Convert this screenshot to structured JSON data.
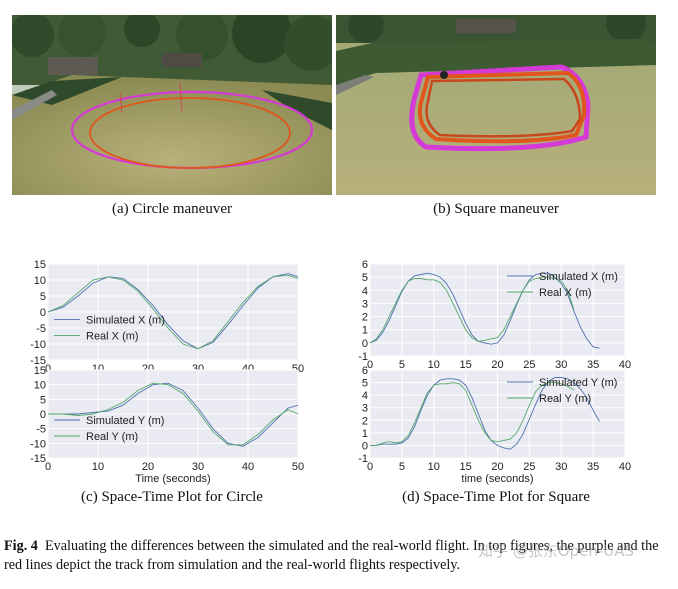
{
  "figure": {
    "subcaptions": {
      "a": "(a)  Circle maneuver",
      "b": "(b)  Square maneuver",
      "c": "(c)  Space-Time Plot for Circle",
      "d": "(d)  Space-Time Plot for Square"
    },
    "caption_label": "Fig. 4",
    "caption_text": "Evaluating the differences between the simulated and the real-world flight. In top figures, the purple and the red lines depict the track from simulation and the real-world flights respectively.",
    "watermark": "知乎 @张东Open-UAS"
  },
  "colors": {
    "simulated": "#4c72b0",
    "real": "#55a868",
    "plot_bg": "#eaeaf2",
    "sim_track": "#d63ad6",
    "real_track": "#e0561c"
  },
  "chart_data": [
    {
      "id": "circle-x",
      "type": "line",
      "xlim": [
        0,
        50
      ],
      "ylim": [
        -15,
        15
      ],
      "xticks": [
        0,
        10,
        20,
        30,
        40,
        50
      ],
      "yticks": [
        15,
        10,
        5,
        0,
        -5,
        -10,
        -15
      ],
      "xlabel": "",
      "legend_position": "left-middle",
      "grid": true,
      "series": [
        {
          "name": "Simulated X (m)",
          "x": [
            0,
            3,
            6,
            9,
            12,
            15,
            18,
            21,
            24,
            27,
            30,
            33,
            36,
            39,
            42,
            45,
            48,
            50
          ],
          "y": [
            0,
            1.5,
            5,
            9,
            11,
            10.5,
            7,
            2,
            -4,
            -9,
            -11.5,
            -9.5,
            -4,
            2,
            7.5,
            11,
            12,
            11
          ]
        },
        {
          "name": "Real X (m)",
          "x": [
            0,
            3,
            6,
            9,
            12,
            15,
            18,
            21,
            24,
            27,
            30,
            33,
            36,
            39,
            42,
            45,
            48,
            50
          ],
          "y": [
            0,
            2,
            6,
            10,
            11,
            10,
            6.5,
            1,
            -5,
            -10,
            -11.5,
            -9,
            -3,
            3,
            8,
            11,
            11.5,
            10.5
          ]
        }
      ]
    },
    {
      "id": "square-x",
      "type": "line",
      "xlim": [
        0,
        40
      ],
      "ylim": [
        -1,
        6
      ],
      "xticks": [
        0,
        5,
        10,
        15,
        20,
        25,
        30,
        35,
        40
      ],
      "yticks": [
        6,
        5,
        4,
        3,
        2,
        1,
        0,
        -1
      ],
      "xlabel": "",
      "legend_position": "top-right",
      "grid": true,
      "series": [
        {
          "name": "Simulated X (m)",
          "x": [
            0,
            1,
            2,
            3,
            4,
            5,
            6,
            7,
            8,
            9,
            10,
            11,
            12,
            13,
            14,
            15,
            16,
            17,
            18,
            19,
            20,
            21,
            22,
            23,
            24,
            25,
            26,
            27,
            28,
            29,
            30,
            31,
            32,
            33,
            34,
            35,
            36
          ],
          "y": [
            0,
            0.2,
            0.8,
            1.7,
            2.8,
            3.9,
            4.7,
            5.1,
            5.2,
            5.3,
            5.2,
            5,
            4.5,
            3.7,
            2.6,
            1.5,
            0.6,
            0.1,
            0,
            -0.1,
            0,
            0.6,
            1.7,
            2.9,
            4,
            4.8,
            5.2,
            5.3,
            5.3,
            5,
            4.5,
            3.7,
            2.4,
            1.2,
            0.3,
            -0.3,
            -0.4
          ]
        },
        {
          "name": "Real X (m)",
          "x": [
            0,
            1,
            2,
            3,
            4,
            5,
            6,
            7,
            8,
            9,
            10,
            11,
            12,
            13,
            14,
            15,
            16,
            17,
            18,
            19,
            20,
            21,
            22,
            23,
            24,
            25,
            26,
            27,
            28,
            29,
            30,
            31,
            32
          ],
          "y": [
            0,
            0.3,
            1,
            2,
            3,
            4,
            4.7,
            4.9,
            4.9,
            4.8,
            4.8,
            4.6,
            4,
            3,
            2,
            1,
            0.4,
            0.1,
            0.2,
            0.3,
            0.4,
            1,
            2,
            3,
            4,
            4.7,
            4.9,
            5,
            5,
            4.9,
            4.7,
            4,
            2.5
          ]
        }
      ]
    },
    {
      "id": "circle-y",
      "type": "line",
      "xlim": [
        0,
        50
      ],
      "ylim": [
        -15,
        15
      ],
      "xticks": [
        0,
        10,
        20,
        30,
        40,
        50
      ],
      "yticks": [
        15,
        10,
        5,
        0,
        -5,
        -10,
        -15
      ],
      "xlabel": "Time (seconds)",
      "legend_position": "bottom-left",
      "grid": true,
      "series": [
        {
          "name": "Simulated Y (m)",
          "x": [
            0,
            3,
            6,
            9,
            12,
            15,
            18,
            21,
            24,
            27,
            30,
            33,
            36,
            39,
            42,
            45,
            48,
            50
          ],
          "y": [
            0,
            0,
            0,
            0.5,
            1,
            3,
            7,
            10,
            10.5,
            8,
            2,
            -5,
            -10,
            -11,
            -8,
            -3,
            2,
            3
          ]
        },
        {
          "name": "Real Y (m)",
          "x": [
            0,
            3,
            6,
            9,
            12,
            15,
            18,
            21,
            24,
            27,
            30,
            33,
            36,
            39,
            42,
            45,
            48,
            50
          ],
          "y": [
            0,
            0,
            -0.5,
            0,
            1.5,
            4,
            8,
            10.5,
            10,
            7,
            1,
            -6,
            -10.5,
            -10.5,
            -7,
            -2,
            1.5,
            0
          ]
        }
      ]
    },
    {
      "id": "square-y",
      "type": "line",
      "xlim": [
        0,
        40
      ],
      "ylim": [
        -1,
        6
      ],
      "xticks": [
        0,
        5,
        10,
        15,
        20,
        25,
        30,
        35,
        40
      ],
      "yticks": [
        6,
        5,
        4,
        3,
        2,
        1,
        0,
        -1
      ],
      "xlabel": "time (seconds)",
      "legend_position": "top-right",
      "grid": true,
      "series": [
        {
          "name": "Simulated Y (m)",
          "x": [
            0,
            1,
            2,
            3,
            4,
            5,
            6,
            7,
            8,
            9,
            10,
            11,
            12,
            13,
            14,
            15,
            16,
            17,
            18,
            19,
            20,
            21,
            22,
            23,
            24,
            25,
            26,
            27,
            28,
            29,
            30,
            31,
            32,
            33,
            34,
            35,
            36
          ],
          "y": [
            0,
            0,
            0.1,
            0.1,
            0.1,
            0.2,
            0.6,
            1.5,
            2.8,
            4,
            4.8,
            5.2,
            5.3,
            5.3,
            5.2,
            4.8,
            3.8,
            2.5,
            1.2,
            0.4,
            0,
            -0.2,
            -0.3,
            0.1,
            0.9,
            2.1,
            3.3,
            4.4,
            5.1,
            5.4,
            5.4,
            5.3,
            5,
            4.5,
            3.8,
            2.8,
            1.9
          ]
        },
        {
          "name": "Real Y (m)",
          "x": [
            0,
            1,
            2,
            3,
            4,
            5,
            6,
            7,
            8,
            9,
            10,
            11,
            12,
            13,
            14,
            15,
            16,
            17,
            18,
            19,
            20,
            21,
            22,
            23,
            24,
            25,
            26,
            27,
            28,
            29,
            30,
            31,
            32
          ],
          "y": [
            0,
            0,
            0.2,
            0.3,
            0.2,
            0.3,
            0.8,
            1.8,
            3,
            4.2,
            4.8,
            4.9,
            4.9,
            5,
            4.9,
            4.4,
            3.2,
            2,
            1,
            0.4,
            0.3,
            0.4,
            0.5,
            1,
            2,
            3.2,
            4.3,
            4.8,
            5,
            5,
            4.9,
            4.7,
            4.4
          ]
        }
      ]
    }
  ]
}
